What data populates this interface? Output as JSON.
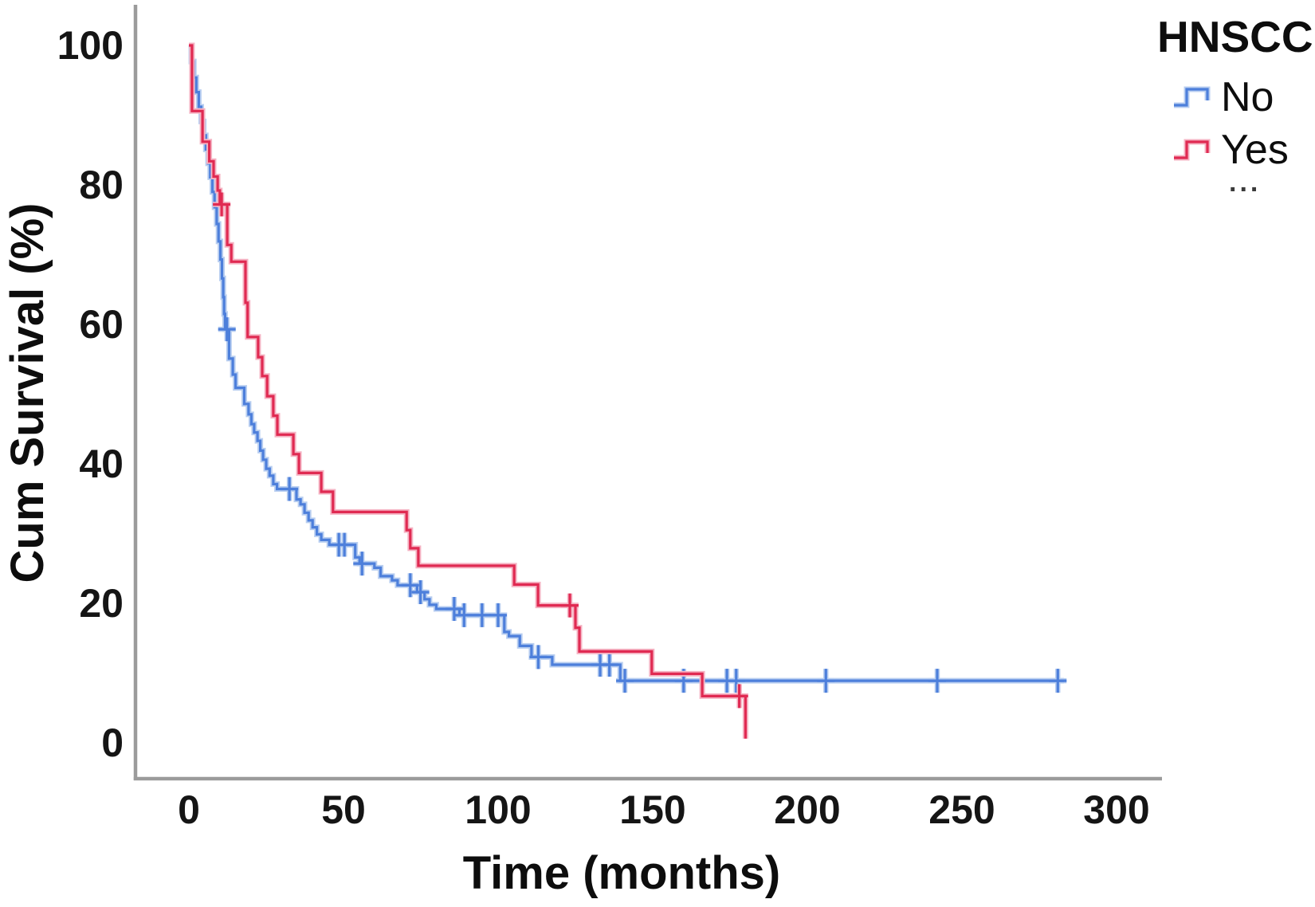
{
  "page": {
    "background": "#ffffff"
  },
  "legend": {
    "title": "HNSCC",
    "items": [
      {
        "label": "No",
        "color_key": "series-no"
      },
      {
        "label": "Yes",
        "color_key": "series-yes"
      }
    ],
    "overflow_ellipsis": "..."
  },
  "chart_data": {
    "type": "line",
    "subtype": "kaplan_meier_step",
    "title": "",
    "xlabel": "Time (months)",
    "ylabel": "Cum Survival (%)",
    "xticks": [
      0,
      50,
      100,
      150,
      200,
      250,
      300
    ],
    "yticks": [
      0,
      20,
      40,
      60,
      80,
      100
    ],
    "xlim": [
      -17,
      314
    ],
    "ylim": [
      -5,
      106
    ],
    "grid": false,
    "legend_position": "outside-top-right",
    "axis_color": "#9b9b9b",
    "text_color": "#111111",
    "series": [
      {
        "name": "No",
        "color": "#4d7fdb",
        "halo": "#b8cef0",
        "end_time": 283,
        "steps": [
          [
            0,
            100
          ],
          [
            0.8,
            97.7
          ],
          [
            1.6,
            95.4
          ],
          [
            2.4,
            93.3
          ],
          [
            3.2,
            91.2
          ],
          [
            4,
            89.1
          ],
          [
            4.8,
            87.1
          ],
          [
            5.5,
            85.1
          ],
          [
            6.2,
            83.1
          ],
          [
            6.9,
            81.1
          ],
          [
            7.6,
            79
          ],
          [
            8.3,
            76.8
          ],
          [
            9,
            74.4
          ],
          [
            9.6,
            71.9
          ],
          [
            10.2,
            69.3
          ],
          [
            10.7,
            66.6
          ],
          [
            11.1,
            63.9
          ],
          [
            11.4,
            61.5
          ],
          [
            11.7,
            59.3
          ],
          [
            13,
            55.1
          ],
          [
            14.2,
            52.8
          ],
          [
            15.1,
            50.9
          ],
          [
            17.9,
            48.6
          ],
          [
            19.3,
            47.1
          ],
          [
            20.2,
            45.7
          ],
          [
            21.1,
            44.5
          ],
          [
            22.2,
            43.3
          ],
          [
            23.1,
            41.9
          ],
          [
            24,
            40.6
          ],
          [
            25,
            39.3
          ],
          [
            26.1,
            38.3
          ],
          [
            27.3,
            37.1
          ],
          [
            28.5,
            36.4
          ],
          [
            34.8,
            34.9
          ],
          [
            36.1,
            34.2
          ],
          [
            37.4,
            33
          ],
          [
            38.7,
            31.9
          ],
          [
            40,
            30.9
          ],
          [
            41.4,
            29.9
          ],
          [
            42.8,
            29.1
          ],
          [
            45.4,
            28.4
          ],
          [
            53.8,
            26.6
          ],
          [
            55.2,
            25.7
          ],
          [
            60,
            25.1
          ],
          [
            62,
            23.9
          ],
          [
            65.7,
            23.3
          ],
          [
            67.5,
            22.6
          ],
          [
            73.8,
            21.6
          ],
          [
            76.2,
            20.6
          ],
          [
            77.8,
            19.8
          ],
          [
            80,
            19.2
          ],
          [
            87.5,
            18.3
          ],
          [
            102,
            15.9
          ],
          [
            103.5,
            15.3
          ],
          [
            107,
            13.9
          ],
          [
            110.8,
            12.3
          ],
          [
            117.5,
            11.2
          ],
          [
            139.5,
            8.9
          ]
        ],
        "censors": [
          [
            12.3,
            59.3
          ],
          [
            32.5,
            36.4
          ],
          [
            48.5,
            28.4
          ],
          [
            50.3,
            28.4
          ],
          [
            56,
            25.7
          ],
          [
            71.6,
            22.6
          ],
          [
            74.9,
            21.6
          ],
          [
            85.8,
            19.2
          ],
          [
            89,
            18.3
          ],
          [
            94.8,
            18.3
          ],
          [
            100,
            18.3
          ],
          [
            113,
            12.3
          ],
          [
            133,
            11.2
          ],
          [
            136,
            11.2
          ],
          [
            141,
            8.9
          ],
          [
            160,
            8.9
          ],
          [
            174,
            8.9
          ],
          [
            177,
            8.9
          ],
          [
            206,
            8.9
          ],
          [
            242,
            8.9
          ],
          [
            281,
            8.9
          ]
        ]
      },
      {
        "name": "Yes",
        "color": "#e02a52",
        "halo": "#f5b3c3",
        "end_time": 180,
        "steps": [
          [
            0,
            100
          ],
          [
            1,
            90.6
          ],
          [
            4.4,
            86.2
          ],
          [
            6.6,
            83.4
          ],
          [
            8,
            81.2
          ],
          [
            9.3,
            79.2
          ],
          [
            10,
            77.2
          ],
          [
            12.4,
            71.4
          ],
          [
            13.7,
            69
          ],
          [
            18.3,
            63.1
          ],
          [
            19,
            58.2
          ],
          [
            22.4,
            55.3
          ],
          [
            23.7,
            52.6
          ],
          [
            25.3,
            49.7
          ],
          [
            27.3,
            46.9
          ],
          [
            28.6,
            44.2
          ],
          [
            33.8,
            41.4
          ],
          [
            35.6,
            38.7
          ],
          [
            42.8,
            36
          ],
          [
            46.6,
            33.1
          ],
          [
            70.4,
            30.5
          ],
          [
            71.6,
            27.9
          ],
          [
            74.2,
            25.4
          ],
          [
            105.2,
            22.7
          ],
          [
            112.9,
            19.7
          ],
          [
            125,
            16.5
          ],
          [
            126.3,
            13.1
          ],
          [
            149.7,
            9.9
          ],
          [
            166,
            6.7
          ],
          [
            180,
            0.6
          ]
        ],
        "censors": [
          [
            10.6,
            77.2
          ],
          [
            123.2,
            19.7
          ],
          [
            178,
            6.7
          ]
        ]
      }
    ]
  }
}
